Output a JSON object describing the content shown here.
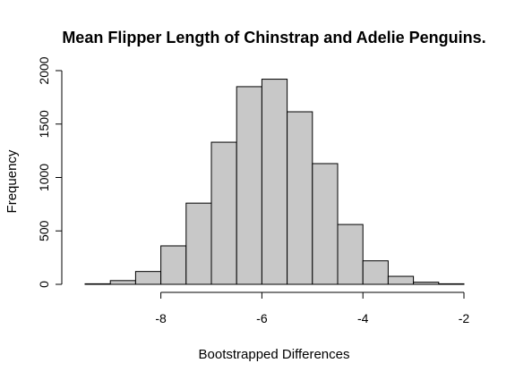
{
  "chart_data": {
    "type": "bar",
    "title": "Mean Flipper Length of Chinstrap and Adelie Penguins.",
    "xlabel": "Bootstrapped Differences",
    "ylabel": "Frequency",
    "bin_edges": [
      -9.5,
      -9.0,
      -8.5,
      -8.0,
      -7.5,
      -7.0,
      -6.5,
      -6.0,
      -5.5,
      -5.0,
      -4.5,
      -4.0,
      -3.5,
      -3.0,
      -2.5,
      -2.0
    ],
    "values": [
      5,
      35,
      120,
      360,
      760,
      1330,
      1850,
      1920,
      1615,
      1130,
      560,
      220,
      75,
      20,
      5
    ],
    "xlim": [
      -9.5,
      -2.0
    ],
    "ylim": [
      0,
      2000
    ],
    "x_ticks": [
      -8,
      -6,
      -4,
      -2
    ],
    "x_tick_labels": [
      "-8",
      "-6",
      "-4",
      "-2"
    ],
    "y_ticks": [
      0,
      500,
      1000,
      1500,
      2000
    ],
    "y_tick_labels": [
      "0",
      "500",
      "1000",
      "1500",
      "2000"
    ],
    "bar_color": "#c8c8c8",
    "grid": false
  }
}
